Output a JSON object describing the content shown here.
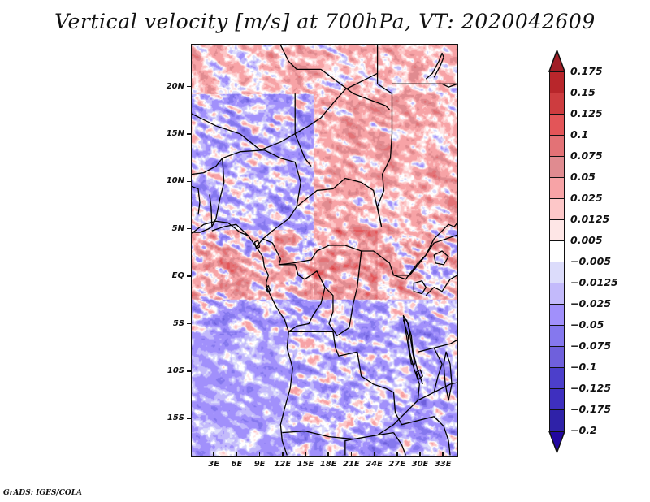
{
  "title": "Vertical velocity [m/s] at 700hPa, VT: 2020042609",
  "credit": "GrADS: IGES/COLA",
  "chart_data": {
    "type": "heatmap",
    "title": "Vertical velocity [m/s] at 700hPa, VT: 2020042609",
    "variable": "Vertical velocity",
    "units": "m/s",
    "level": "700hPa",
    "valid_time": "2020042609",
    "xlabel": "",
    "ylabel": "",
    "xlim": [
      0,
      35
    ],
    "ylim": [
      -19,
      24.5
    ],
    "xticks": [
      3,
      6,
      9,
      12,
      15,
      18,
      21,
      24,
      27,
      30,
      33
    ],
    "xtick_labels": [
      "3E",
      "6E",
      "9E",
      "12E",
      "15E",
      "18E",
      "21E",
      "24E",
      "27E",
      "30E",
      "33E"
    ],
    "yticks": [
      20,
      15,
      10,
      5,
      0,
      -5,
      -10,
      -15
    ],
    "ytick_labels": [
      "20N",
      "15N",
      "10N",
      "5N",
      "EQ",
      "5S",
      "10S",
      "15S"
    ],
    "grid": false,
    "legend": {
      "placement": "right",
      "type": "colorbar",
      "levels": [
        0.175,
        0.15,
        0.125,
        0.1,
        0.075,
        0.05,
        0.025,
        0.0125,
        0.005,
        -0.005,
        -0.0125,
        -0.025,
        -0.05,
        -0.075,
        -0.1,
        -0.125,
        -0.175,
        -0.2
      ],
      "level_labels": [
        "0.175",
        "0.15",
        "0.125",
        "0.1",
        "0.075",
        "0.05",
        "0.025",
        "0.0125",
        "0.005",
        "−0.005",
        "−0.0125",
        "−0.025",
        "−0.05",
        "−0.075",
        "−0.1",
        "−0.125",
        "−0.175",
        "−0.2"
      ],
      "colors_top_to_bottom": [
        "#a01e26",
        "#b8262b",
        "#cd3c3f",
        "#e35558",
        "#e37276",
        "#e08b90",
        "#f7a3a6",
        "#fdc7c8",
        "#fee6e6",
        "#ffffff",
        "#dcdcfb",
        "#c3bafb",
        "#a190fb",
        "#8578ee",
        "#6f60dc",
        "#4c3fcb",
        "#3e2fbf",
        "#2f22a8",
        "#2207a0"
      ],
      "extend": "both"
    },
    "regions": {
      "north_sahara": "mixed, red streaks",
      "sahel_15N_10N": "red dominant east, blue west",
      "equatorial_atlantic": "red speckled",
      "central_africa": "strong red cells near 18E-21E",
      "southern_atlantic": "light blue",
      "southern_africa": "mixed blue/red"
    }
  }
}
